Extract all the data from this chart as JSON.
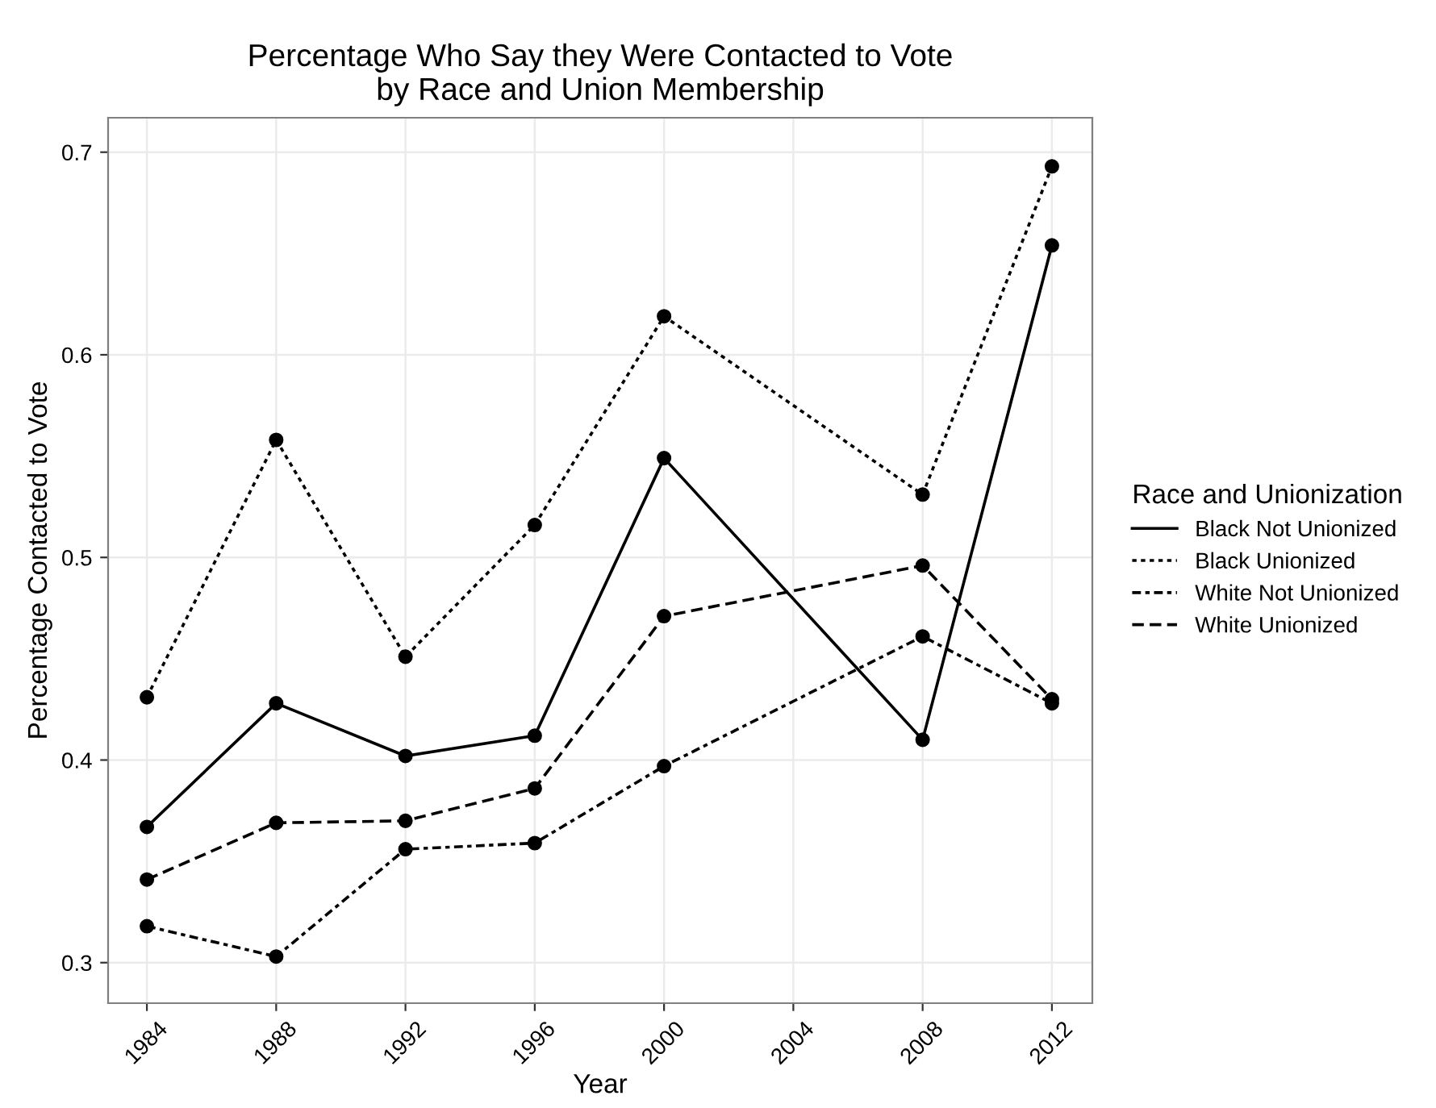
{
  "chart_data": {
    "type": "line",
    "title": "Percentage Who Say they Were Contacted to Vote\nby Race and Union Membership",
    "xlabel": "Year",
    "ylabel": "Percentage Contacted to Vote",
    "legend_title": "Race and Unionization",
    "x": [
      1984,
      1988,
      1992,
      1996,
      2000,
      2008,
      2012
    ],
    "series": [
      {
        "name": "Black Not Unionized",
        "color": "#000000",
        "line_style": "solid",
        "values": [
          0.367,
          0.428,
          0.402,
          0.412,
          0.549,
          0.41,
          0.654
        ]
      },
      {
        "name": "Black Unionized",
        "color": "#000000",
        "line_style": "dotted",
        "values": [
          0.431,
          0.558,
          0.451,
          0.516,
          0.619,
          0.531,
          0.693
        ]
      },
      {
        "name": "White Not Unionized",
        "color": "#000000",
        "line_style": "dashdot",
        "values": [
          0.318,
          0.303,
          0.356,
          0.359,
          0.397,
          0.461,
          0.428
        ]
      },
      {
        "name": "White Unionized",
        "color": "#000000",
        "line_style": "dashed",
        "values": [
          0.341,
          0.369,
          0.37,
          0.386,
          0.471,
          0.496,
          0.43
        ]
      }
    ],
    "xlim": [
      1982.8,
      2013.25
    ],
    "xticks": [
      1984,
      1988,
      1992,
      1996,
      2000,
      2004,
      2008,
      2012
    ],
    "ylim": [
      0.28,
      0.717
    ],
    "yticks": [
      {
        "value": 0.3,
        "label": "0.3"
      },
      {
        "value": 0.4,
        "label": "0.4"
      },
      {
        "value": 0.5,
        "label": "0.5"
      },
      {
        "value": 0.6,
        "label": "0.6"
      },
      {
        "value": 0.7,
        "label": "0.7"
      }
    ],
    "grid": true,
    "legend": "right",
    "marker": "circle"
  }
}
